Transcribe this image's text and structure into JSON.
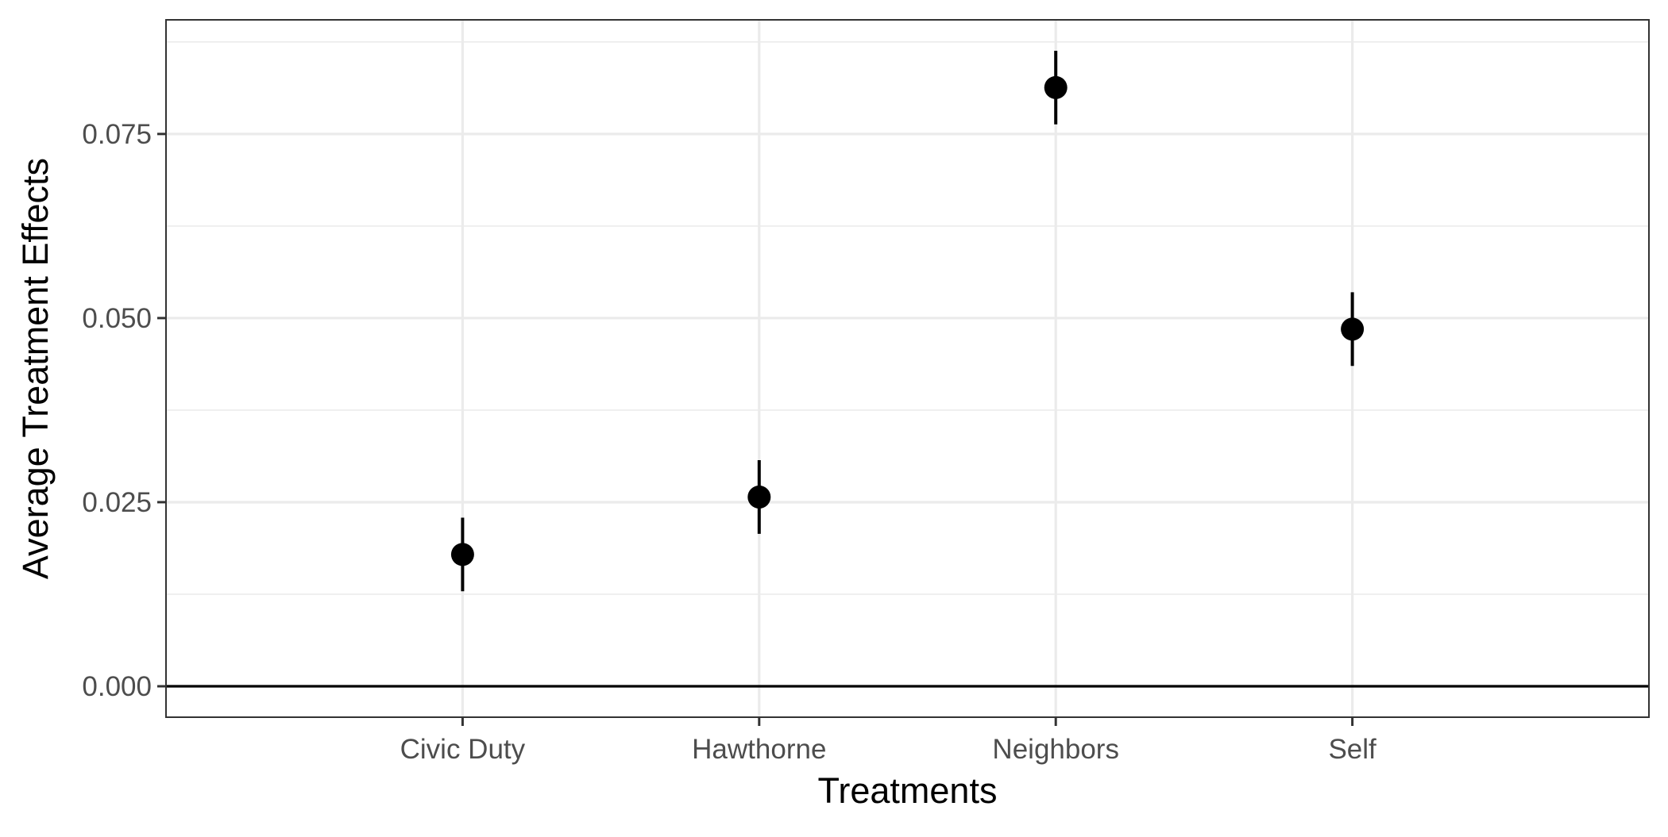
{
  "chart_data": {
    "type": "scatter",
    "title": "",
    "xlabel": "Treatments",
    "ylabel": "Average Treatment Effects",
    "categories": [
      "Civic Duty",
      "Hawthorne",
      "Neighbors",
      "Self"
    ],
    "series": [
      {
        "values": [
          0.0179,
          0.0257,
          0.0813,
          0.0485
        ],
        "lower": [
          0.0129,
          0.0207,
          0.0763,
          0.0435
        ],
        "upper": [
          0.0229,
          0.0307,
          0.0863,
          0.0535
        ]
      }
    ],
    "ylim": [
      -0.0042,
      0.0905
    ],
    "yticks": [
      0.0,
      0.025,
      0.05,
      0.075
    ],
    "ytick_labels": [
      "0.000",
      "0.025",
      "0.050",
      "0.075"
    ],
    "reference_line": 0,
    "grid": true,
    "legend": "none",
    "colors": {
      "point": "#000000",
      "grid": "#ebebeb",
      "panel_border": "#333333",
      "tick_text": "#4d4d4d"
    }
  }
}
